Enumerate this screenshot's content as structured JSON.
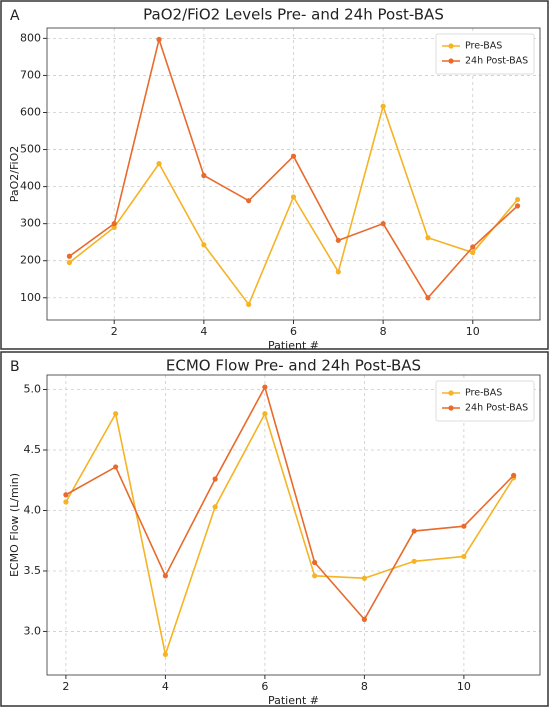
{
  "chart_data": [
    {
      "type": "line",
      "panel": "A",
      "title": "PaO2/FiO2 Levels Pre- and 24h Post-BAS",
      "xlabel": "Patient #",
      "ylabel": "PaO2/FiO2",
      "x": [
        1,
        2,
        3,
        4,
        5,
        6,
        7,
        8,
        9,
        10,
        11
      ],
      "series": [
        {
          "name": "Pre-BAS",
          "color": "#f5b325",
          "values": [
            195,
            290,
            462,
            243,
            82,
            372,
            170,
            617,
            262,
            222,
            365
          ]
        },
        {
          "name": "24h Post-BAS",
          "color": "#e86a2c",
          "values": [
            212,
            300,
            797,
            430,
            362,
            482,
            255,
            300,
            100,
            237,
            348
          ]
        }
      ],
      "xlim": [
        0.5,
        11.5
      ],
      "xticks": [
        2,
        4,
        6,
        8,
        10
      ],
      "ylim": [
        40,
        828
      ],
      "yticks": [
        100,
        200,
        300,
        400,
        500,
        600,
        700,
        800
      ],
      "grid": true,
      "legend": "upper right"
    },
    {
      "type": "line",
      "panel": "B",
      "title": "ECMO Flow Pre- and 24h Post-BAS",
      "xlabel": "Patient #",
      "ylabel": "ECMO Flow (L/min)",
      "x": [
        2,
        3,
        4,
        5,
        6,
        7,
        8,
        9,
        10,
        11
      ],
      "series": [
        {
          "name": "Pre-BAS",
          "color": "#f5b325",
          "values": [
            4.07,
            4.8,
            2.81,
            4.03,
            4.8,
            3.46,
            3.44,
            3.58,
            3.62,
            4.27
          ]
        },
        {
          "name": "24h Post-BAS",
          "color": "#e86a2c",
          "values": [
            4.13,
            4.36,
            3.46,
            4.26,
            5.02,
            3.57,
            3.1,
            3.83,
            3.87,
            4.29
          ]
        }
      ],
      "xlim": [
        1.62,
        11.53
      ],
      "xticks": [
        2,
        4,
        6,
        8,
        10
      ],
      "ylim": [
        2.64,
        5.12
      ],
      "yticks": [
        {
          "value": 3,
          "label": "3.0"
        },
        3.5,
        {
          "value": 4,
          "label": "4.0"
        },
        4.5,
        {
          "value": 5,
          "label": "5.0"
        }
      ],
      "grid": true,
      "legend": "upper right"
    }
  ]
}
